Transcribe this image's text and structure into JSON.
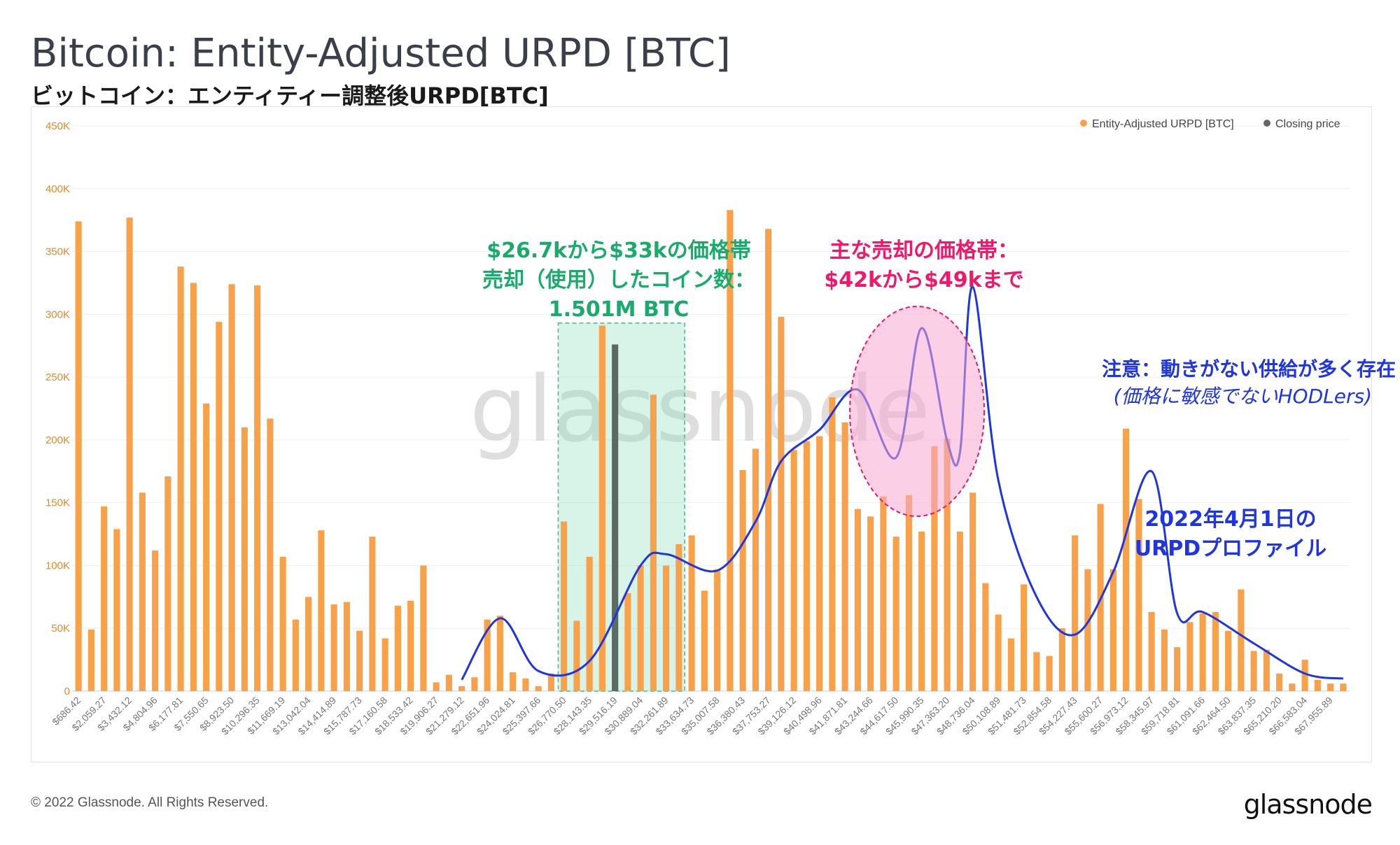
{
  "page": {
    "title": "Bitcoin: Entity-Adjusted URPD [BTC]",
    "subtitle": "ビットコイン：エンティティー調整後URPD[BTC]",
    "footer": "© 2022 Glassnode. All Rights Reserved.",
    "brand": "glassnode",
    "watermark": "glassnode"
  },
  "annotations": {
    "green": [
      "$26.7kから$33kの価格帯",
      "売却（使用）したコイン数：",
      "1.501M BTC"
    ],
    "pink": [
      "主な売却の価格帯：",
      "$42kから$49kまで"
    ],
    "blue_note": [
      "注意：動きがない供給が多く存在",
      "(価格に敏感でないHODLers)"
    ],
    "blue_profile": [
      "2022年4月1日の",
      "URPDプロファイル"
    ]
  },
  "colors": {
    "bar": "#f7a24b",
    "closing": "#5a6b63",
    "green_text": "#1aab6c",
    "pink_text": "#f0186a",
    "blue": "#1e35e0"
  },
  "chart_data": {
    "type": "bar",
    "title": "Bitcoin: Entity-Adjusted URPD [BTC]",
    "ylim": [
      0,
      450000
    ],
    "y_ticks": [
      0,
      50000,
      100000,
      150000,
      200000,
      250000,
      300000,
      350000,
      400000,
      450000
    ],
    "y_tick_labels": [
      "0",
      "50K",
      "100K",
      "150K",
      "200K",
      "250K",
      "300K",
      "350K",
      "400K",
      "450K"
    ],
    "x_tick_labels": [
      "$686.42",
      "$2,059.27",
      "$3,432.12",
      "$4,804.96",
      "$6,177.81",
      "$7,550.65",
      "$8,923.50",
      "$10,296.35",
      "$11,669.19",
      "$13,042.04",
      "$14,414.89",
      "$15,787.73",
      "$17,160.58",
      "$18,533.42",
      "$19,906.27",
      "$21,279.12",
      "$22,651.96",
      "$24,024.81",
      "$25,397.66",
      "$26,770.50",
      "$28,143.35",
      "$29,516.19",
      "$30,889.04",
      "$32,261.89",
      "$33,634.73",
      "$35,007.58",
      "$36,380.43",
      "$37,753.27",
      "$39,126.12",
      "$40,498.96",
      "$41,871.81",
      "$43,244.66",
      "$44,617.50",
      "$45,990.35",
      "$47,363.20",
      "$48,736.04",
      "$50,108.89",
      "$51,481.73",
      "$52,854.58",
      "$54,227.43",
      "$55,600.27",
      "$56,973.12",
      "$58,345.97",
      "$59,718.81",
      "$61,091.66",
      "$62,464.50",
      "$63,837.35",
      "$65,210.20",
      "$66,583.04",
      "$67,955.89"
    ],
    "values": [
      374000,
      49000,
      147000,
      129000,
      377000,
      158000,
      112000,
      171000,
      338000,
      325000,
      229000,
      294000,
      324000,
      210000,
      323000,
      217000,
      107000,
      57000,
      75000,
      128000,
      69000,
      71000,
      48000,
      123000,
      42000,
      68000,
      72000,
      100000,
      7000,
      13000,
      4000,
      11000,
      57000,
      60000,
      15000,
      10000,
      4000,
      14000,
      135000,
      56000,
      107000,
      291000,
      120000,
      78000,
      100000,
      236000,
      100000,
      117000,
      124000,
      80000,
      97000,
      383000,
      176000,
      193000,
      368000,
      298000,
      192000,
      199000,
      203000,
      234000,
      214000,
      145000,
      139000,
      155000,
      123000,
      156000,
      127000,
      195000,
      201000,
      127000,
      158000,
      86000,
      61000,
      42000,
      85000,
      31000,
      28000,
      50000,
      124000,
      97000,
      149000,
      97000,
      209000,
      153000,
      63000,
      49000,
      35000,
      55000,
      62000,
      63000,
      48000,
      81000,
      32000,
      33000,
      14000,
      6000,
      25000,
      9000,
      6000,
      6000
    ],
    "closing_price_bin_index": 42,
    "closing_price_value": 276000,
    "legend": [
      "Entity-Adjusted URPD [BTC]",
      "Closing price"
    ],
    "legend_position": "top-right",
    "grid": true,
    "highlight_range": [
      "$26,770.50",
      "$32,261.89"
    ],
    "profile_curve_points": [
      [
        30,
        9000
      ],
      [
        33,
        58000
      ],
      [
        36,
        16000
      ],
      [
        40,
        24000
      ],
      [
        44,
        100000
      ],
      [
        46,
        109000
      ],
      [
        50,
        96000
      ],
      [
        53,
        135000
      ],
      [
        55,
        183000
      ],
      [
        58,
        208000
      ],
      [
        61,
        240000
      ],
      [
        64,
        186000
      ],
      [
        66,
        289000
      ],
      [
        68,
        199000
      ],
      [
        69,
        190000
      ],
      [
        70,
        322000
      ],
      [
        72,
        168000
      ],
      [
        75,
        75000
      ],
      [
        78,
        45000
      ],
      [
        81,
        95000
      ],
      [
        84,
        175000
      ],
      [
        86,
        62000
      ],
      [
        88,
        63000
      ],
      [
        92,
        38000
      ],
      [
        96,
        14000
      ],
      [
        99,
        10000
      ]
    ]
  }
}
